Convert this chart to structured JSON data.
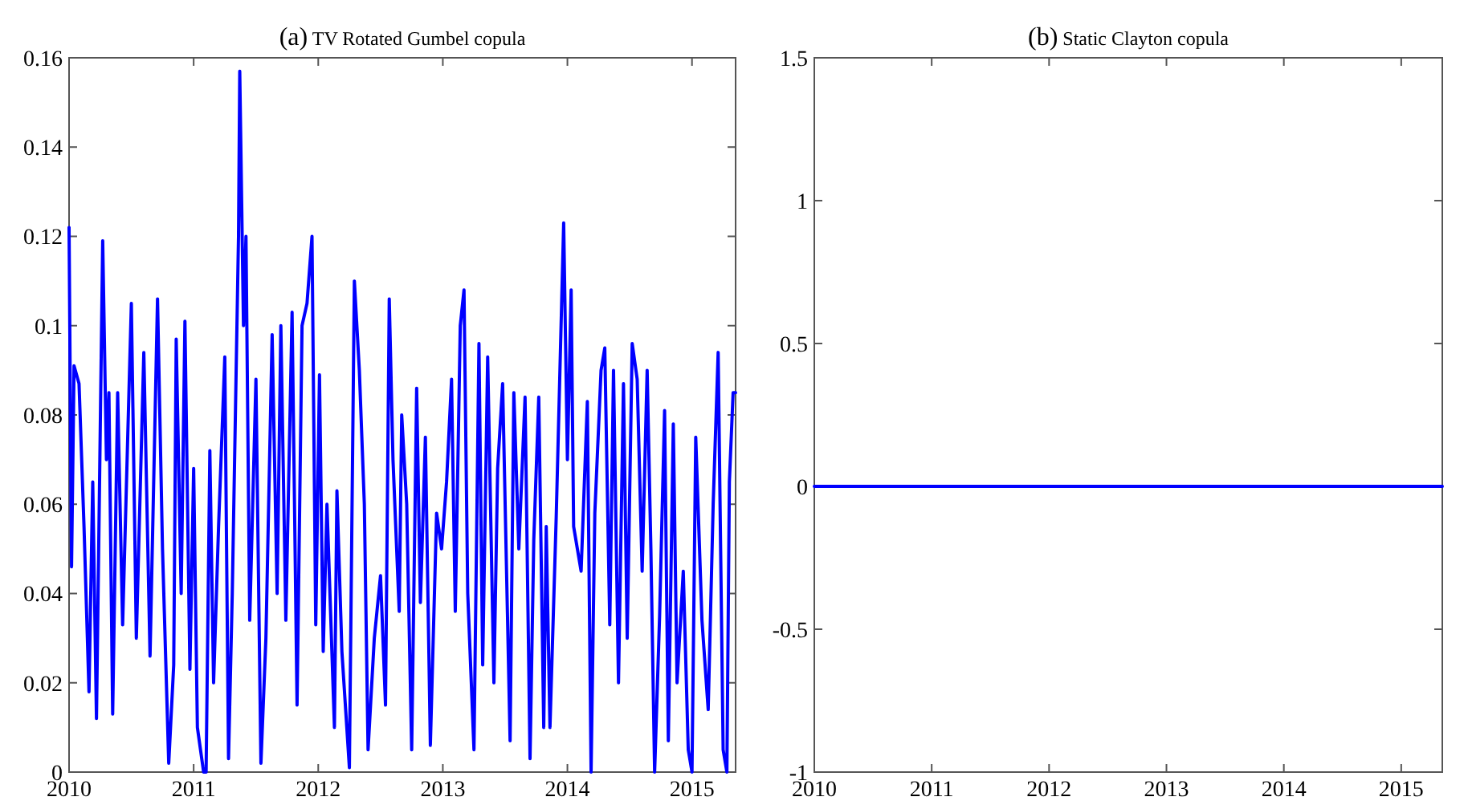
{
  "chart_data": [
    {
      "type": "line",
      "title": "(a) TV Rotated Gumbel copula",
      "x": [
        2010.0,
        2010.02,
        2010.04,
        2010.08,
        2010.12,
        2010.16,
        2010.19,
        2010.22,
        2010.27,
        2010.3,
        2010.32,
        2010.35,
        2010.39,
        2010.43,
        2010.5,
        2010.54,
        2010.6,
        2010.65,
        2010.71,
        2010.75,
        2010.8,
        2010.84,
        2010.86,
        2010.9,
        2010.93,
        2010.97,
        2011.0,
        2011.03,
        2011.08,
        2011.1,
        2011.13,
        2011.16,
        2011.2,
        2011.25,
        2011.28,
        2011.31,
        2011.36,
        2011.37,
        2011.4,
        2011.42,
        2011.45,
        2011.5,
        2011.54,
        2011.58,
        2011.63,
        2011.67,
        2011.7,
        2011.74,
        2011.79,
        2011.83,
        2011.87,
        2011.91,
        2011.95,
        2011.98,
        2012.01,
        2012.04,
        2012.07,
        2012.13,
        2012.15,
        2012.19,
        2012.25,
        2012.29,
        2012.33,
        2012.37,
        2012.4,
        2012.45,
        2012.5,
        2012.54,
        2012.57,
        2012.6,
        2012.65,
        2012.67,
        2012.71,
        2012.75,
        2012.79,
        2012.82,
        2012.86,
        2012.9,
        2012.95,
        2012.99,
        2013.03,
        2013.07,
        2013.1,
        2013.14,
        2013.17,
        2013.2,
        2013.25,
        2013.29,
        2013.32,
        2013.36,
        2013.41,
        2013.44,
        2013.48,
        2013.54,
        2013.57,
        2013.61,
        2013.66,
        2013.7,
        2013.73,
        2013.77,
        2013.81,
        2013.83,
        2013.86,
        2013.91,
        2013.97,
        2014.0,
        2014.03,
        2014.05,
        2014.11,
        2014.16,
        2014.19,
        2014.22,
        2014.27,
        2014.3,
        2014.34,
        2014.37,
        2014.41,
        2014.45,
        2014.48,
        2014.52,
        2014.56,
        2014.6,
        2014.64,
        2014.67,
        2014.7,
        2014.74,
        2014.78,
        2014.81,
        2014.85,
        2014.88,
        2014.93,
        2014.97,
        2015.0,
        2015.03,
        2015.08,
        2015.13,
        2015.17,
        2015.21,
        2015.25,
        2015.28,
        2015.3,
        2015.33,
        2015.35
      ],
      "series": [
        {
          "color": "#0000ff",
          "values": [
            0.122,
            0.046,
            0.091,
            0.087,
            0.055,
            0.018,
            0.065,
            0.012,
            0.119,
            0.07,
            0.085,
            0.013,
            0.085,
            0.033,
            0.105,
            0.03,
            0.094,
            0.026,
            0.106,
            0.05,
            0.002,
            0.024,
            0.097,
            0.04,
            0.101,
            0.023,
            0.068,
            0.01,
            0.0,
            0.0,
            0.072,
            0.02,
            0.055,
            0.093,
            0.003,
            0.04,
            0.12,
            0.157,
            0.1,
            0.12,
            0.034,
            0.088,
            0.002,
            0.03,
            0.098,
            0.04,
            0.1,
            0.034,
            0.103,
            0.015,
            0.1,
            0.105,
            0.12,
            0.033,
            0.089,
            0.027,
            0.06,
            0.01,
            0.063,
            0.027,
            0.001,
            0.11,
            0.09,
            0.06,
            0.005,
            0.03,
            0.044,
            0.015,
            0.106,
            0.07,
            0.036,
            0.08,
            0.06,
            0.005,
            0.086,
            0.038,
            0.075,
            0.006,
            0.058,
            0.05,
            0.065,
            0.088,
            0.036,
            0.1,
            0.108,
            0.04,
            0.005,
            0.096,
            0.024,
            0.093,
            0.02,
            0.068,
            0.087,
            0.007,
            0.085,
            0.05,
            0.084,
            0.003,
            0.052,
            0.084,
            0.01,
            0.055,
            0.01,
            0.057,
            0.123,
            0.07,
            0.108,
            0.055,
            0.045,
            0.083,
            0.0,
            0.058,
            0.09,
            0.095,
            0.033,
            0.09,
            0.02,
            0.087,
            0.03,
            0.096,
            0.088,
            0.045,
            0.09,
            0.05,
            0.0,
            0.035,
            0.081,
            0.007,
            0.078,
            0.02,
            0.045,
            0.005,
            0.0,
            0.075,
            0.034,
            0.014,
            0.06,
            0.094,
            0.005,
            0.0,
            0.065,
            0.085,
            0.085
          ]
        }
      ],
      "xlim": [
        2010,
        2015.35
      ],
      "xticks": [
        2010,
        2011,
        2012,
        2013,
        2014,
        2015
      ],
      "ylim": [
        0,
        0.16
      ],
      "yticks": [
        0,
        0.02,
        0.04,
        0.06,
        0.08,
        0.1,
        0.12,
        0.14,
        0.16
      ]
    },
    {
      "type": "line",
      "title": "(b) Static Clayton copula",
      "x": [
        2010,
        2015.35
      ],
      "series": [
        {
          "color": "#0000ff",
          "values": [
            0,
            0
          ]
        }
      ],
      "xlim": [
        2010,
        2015.35
      ],
      "xticks": [
        2010,
        2011,
        2012,
        2013,
        2014,
        2015
      ],
      "ylim": [
        -1,
        1.5
      ],
      "yticks": [
        -1,
        -0.5,
        0,
        0.5,
        1,
        1.5
      ]
    }
  ]
}
